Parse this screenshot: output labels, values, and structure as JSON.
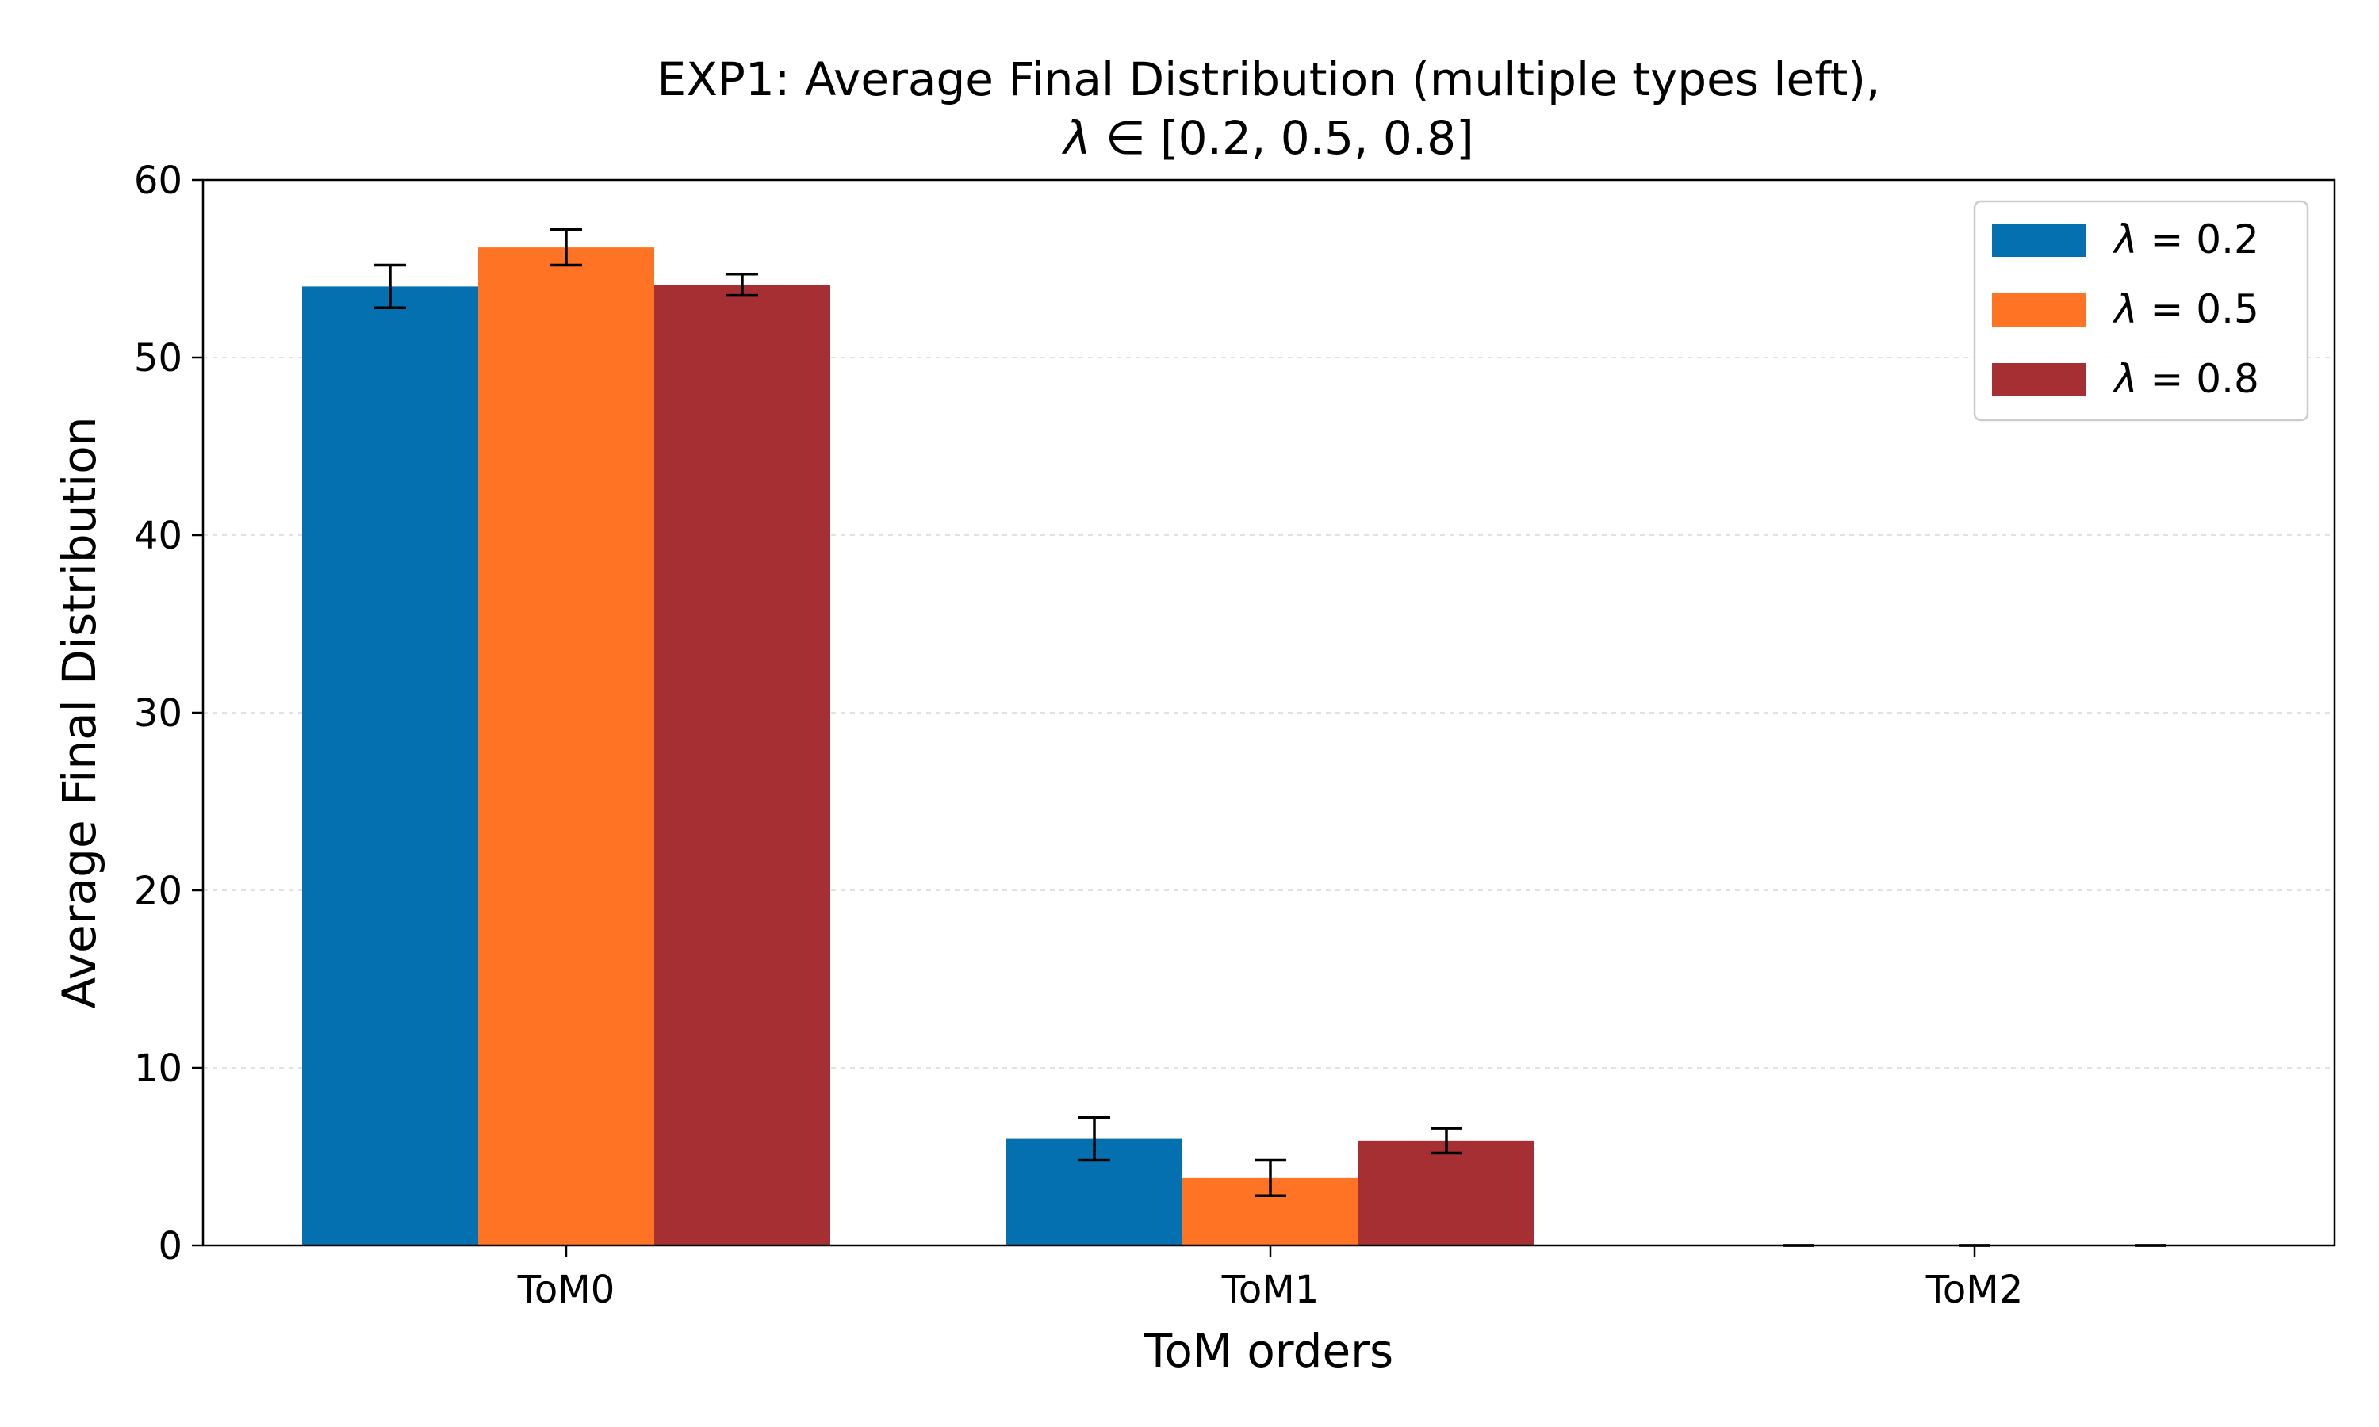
{
  "chart_data": {
    "type": "bar",
    "title_line1": "EXP1: Average Final Distribution (multiple types left),",
    "title_line2_prefix": "λ",
    "title_line2_rest": " ∈ [0.2, 0.5, 0.8]",
    "xlabel": "ToM orders",
    "ylabel": "Average Final Distribution",
    "categories": [
      "ToM0",
      "ToM1",
      "ToM2"
    ],
    "ylim": [
      0,
      60
    ],
    "yticks": [
      0,
      10,
      20,
      30,
      40,
      50,
      60
    ],
    "grid": "y-dashed",
    "legend_position": "top-right",
    "series": [
      {
        "name": "λ = 0.2",
        "legend_symbol": "λ",
        "legend_value": " = 0.2",
        "color": "#0570b0",
        "values": [
          54.0,
          6.0,
          0.0
        ],
        "errors": [
          1.2,
          1.2,
          0.0
        ]
      },
      {
        "name": "λ = 0.5",
        "legend_symbol": "λ",
        "legend_value": " = 0.5",
        "color": "#fe7324",
        "values": [
          56.2,
          3.8,
          0.0
        ],
        "errors": [
          1.0,
          1.0,
          0.0
        ]
      },
      {
        "name": "λ = 0.8",
        "legend_symbol": "λ",
        "legend_value": " = 0.8",
        "color": "#a52f33",
        "values": [
          54.1,
          5.9,
          0.0
        ],
        "errors": [
          0.6,
          0.7,
          0.0
        ]
      }
    ]
  }
}
